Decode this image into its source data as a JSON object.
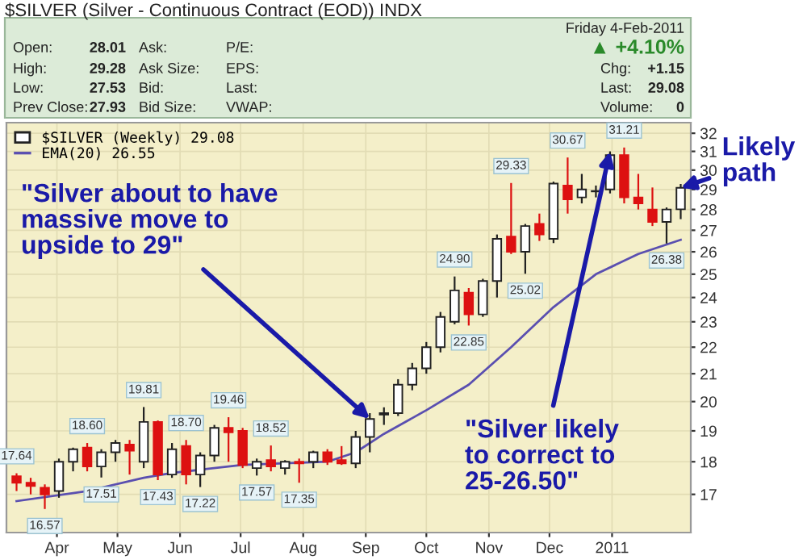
{
  "chart_data": {
    "type": "candlestick",
    "title": "$SILVER (Silver - Continuous Contract (EOD)) INDX",
    "x": [
      "2010-03-12",
      "2010-03-19",
      "2010-03-26",
      "2010-04-02",
      "2010-04-09",
      "2010-04-16",
      "2010-04-23",
      "2010-04-30",
      "2010-05-07",
      "2010-05-14",
      "2010-05-21",
      "2010-05-28",
      "2010-06-04",
      "2010-06-11",
      "2010-06-18",
      "2010-06-25",
      "2010-07-02",
      "2010-07-09",
      "2010-07-16",
      "2010-07-23",
      "2010-07-30",
      "2010-08-06",
      "2010-08-13",
      "2010-08-20",
      "2010-08-27",
      "2010-09-03",
      "2010-09-10",
      "2010-09-17",
      "2010-09-24",
      "2010-10-01",
      "2010-10-08",
      "2010-10-15",
      "2010-10-22",
      "2010-10-29",
      "2010-11-05",
      "2010-11-12",
      "2010-11-19",
      "2010-11-26",
      "2010-12-03",
      "2010-12-10",
      "2010-12-17",
      "2010-12-24",
      "2010-12-31",
      "2011-01-07",
      "2011-01-14",
      "2011-01-21",
      "2011-01-28",
      "2011-02-04"
    ],
    "series": [
      {
        "name": "$SILVER (Weekly) 29.08",
        "type": "candlestick",
        "ohlc": [
          [
            17.55,
            17.64,
            17.1,
            17.35
          ],
          [
            17.35,
            17.5,
            17.0,
            17.25
          ],
          [
            17.2,
            17.3,
            16.57,
            17.0
          ],
          [
            17.1,
            18.1,
            16.9,
            18.0
          ],
          [
            18.0,
            18.45,
            17.7,
            18.4
          ],
          [
            18.45,
            18.6,
            17.7,
            17.85
          ],
          [
            17.85,
            18.4,
            17.51,
            18.3
          ],
          [
            18.3,
            18.7,
            18.0,
            18.6
          ],
          [
            18.55,
            18.7,
            17.6,
            18.35
          ],
          [
            18.0,
            19.81,
            17.8,
            19.3
          ],
          [
            19.3,
            19.35,
            17.43,
            17.6
          ],
          [
            17.6,
            18.6,
            17.5,
            18.4
          ],
          [
            18.5,
            18.7,
            17.3,
            17.6
          ],
          [
            17.6,
            18.3,
            17.22,
            18.2
          ],
          [
            18.2,
            19.2,
            18.0,
            19.1
          ],
          [
            19.1,
            19.46,
            18.0,
            18.95
          ],
          [
            19.0,
            19.1,
            17.8,
            17.9
          ],
          [
            17.8,
            18.1,
            17.57,
            18.0
          ],
          [
            18.05,
            18.52,
            17.7,
            17.85
          ],
          [
            17.8,
            18.05,
            17.6,
            18.0
          ],
          [
            18.0,
            18.1,
            17.35,
            17.95
          ],
          [
            18.0,
            18.35,
            17.8,
            18.3
          ],
          [
            18.3,
            18.4,
            17.9,
            18.0
          ],
          [
            18.05,
            18.5,
            17.9,
            17.95
          ],
          [
            17.95,
            19.0,
            17.8,
            18.8
          ],
          [
            18.8,
            19.6,
            18.3,
            19.4
          ],
          [
            19.55,
            19.8,
            19.2,
            19.6
          ],
          [
            19.6,
            20.8,
            19.5,
            20.6
          ],
          [
            20.6,
            21.4,
            20.4,
            21.2
          ],
          [
            21.2,
            22.2,
            21.0,
            22.0
          ],
          [
            22.0,
            23.4,
            21.8,
            23.2
          ],
          [
            23.0,
            24.9,
            22.9,
            24.3
          ],
          [
            24.2,
            24.4,
            22.85,
            23.3
          ],
          [
            23.3,
            24.8,
            23.2,
            24.7
          ],
          [
            24.7,
            26.8,
            24.0,
            26.6
          ],
          [
            26.7,
            29.33,
            25.9,
            26.0
          ],
          [
            26.0,
            27.3,
            25.02,
            27.2
          ],
          [
            27.3,
            27.8,
            26.5,
            26.8
          ],
          [
            26.6,
            29.4,
            26.4,
            29.3
          ],
          [
            29.2,
            30.67,
            27.8,
            28.5
          ],
          [
            28.6,
            29.8,
            28.3,
            29.0
          ],
          [
            28.9,
            29.2,
            28.6,
            28.9
          ],
          [
            29.0,
            31.0,
            28.8,
            30.8
          ],
          [
            30.8,
            31.21,
            28.3,
            28.6
          ],
          [
            28.6,
            29.8,
            28.0,
            28.3
          ],
          [
            28.0,
            29.1,
            27.2,
            27.4
          ],
          [
            27.4,
            28.1,
            26.38,
            28.0
          ],
          [
            28.01,
            29.28,
            27.53,
            29.08
          ]
        ],
        "colors": [
          "#dd1111",
          "#dd1111",
          "#dd1111",
          "#ffffff",
          "#ffffff",
          "#dd1111",
          "#ffffff",
          "#ffffff",
          "#dd1111",
          "#ffffff",
          "#dd1111",
          "#ffffff",
          "#dd1111",
          "#ffffff",
          "#ffffff",
          "#dd1111",
          "#dd1111",
          "#ffffff",
          "#dd1111",
          "#ffffff",
          "#dd1111",
          "#ffffff",
          "#dd1111",
          "#dd1111",
          "#ffffff",
          "#ffffff",
          "#ffffff",
          "#ffffff",
          "#ffffff",
          "#ffffff",
          "#ffffff",
          "#ffffff",
          "#dd1111",
          "#ffffff",
          "#ffffff",
          "#dd1111",
          "#ffffff",
          "#dd1111",
          "#ffffff",
          "#dd1111",
          "#ffffff",
          "#ffffff",
          "#ffffff",
          "#dd1111",
          "#dd1111",
          "#dd1111",
          "#ffffff",
          "#ffffff"
        ]
      },
      {
        "name": "EMA(20) 26.55",
        "type": "line",
        "color": "#5a4fb0",
        "x": [
          "2010-03-12",
          "2010-04-16",
          "2010-05-14",
          "2010-05-28",
          "2010-07-02",
          "2010-08-13",
          "2010-08-27",
          "2010-09-10",
          "2010-10-01",
          "2010-10-22",
          "2010-11-12",
          "2010-12-03",
          "2010-12-24",
          "2011-01-14",
          "2011-02-04"
        ],
        "values": [
          16.8,
          17.1,
          17.5,
          17.65,
          17.9,
          18.0,
          18.3,
          18.9,
          19.7,
          20.6,
          22.0,
          23.6,
          25.0,
          25.9,
          26.55
        ]
      }
    ],
    "ylim": [
      15.9,
      32.6
    ],
    "yticks": [
      17,
      18,
      19,
      20,
      21,
      22,
      23,
      24,
      25,
      26,
      27,
      28,
      29,
      30,
      31,
      32
    ],
    "log": true,
    "xlim": [
      "2010-03-07",
      "2011-02-09"
    ],
    "xticks": [
      {
        "value": "2010-04-01",
        "label": "Apr"
      },
      {
        "value": "2010-05-01",
        "label": "May"
      },
      {
        "value": "2010-06-01",
        "label": "Jun"
      },
      {
        "value": "2010-07-01",
        "label": "Jul"
      },
      {
        "value": "2010-08-01",
        "label": "Aug"
      },
      {
        "value": "2010-09-01",
        "label": "Sep"
      },
      {
        "value": "2010-10-01",
        "label": "Oct"
      },
      {
        "value": "2010-11-01",
        "label": "Nov"
      },
      {
        "value": "2010-12-01",
        "label": "Dec"
      },
      {
        "value": "2011-01-01",
        "label": "2011"
      }
    ],
    "grid": true,
    "legend": "top left",
    "annotations": [
      "Friday 4-Feb-2011",
      "▲ +4.10%",
      "Open:",
      "28.01",
      "Ask:",
      "P/E:",
      "High:",
      "29.28",
      "Ask Size:",
      "EPS:",
      "Chg:",
      "+1.15",
      "Low:",
      "27.53",
      "Bid:",
      "Last:",
      "Last:",
      "29.08",
      "Prev Close:",
      "27.93",
      "Bid Size:",
      "VWAP:",
      "Volume:",
      "0",
      {
        "text": "17.64",
        "x": "2010-03-12",
        "y": 17.64
      },
      {
        "text": "16.57",
        "x": "2010-03-26",
        "y": 16.57
      },
      {
        "text": "18.60",
        "x": "2010-04-16",
        "y": 18.6
      },
      {
        "text": "17.51",
        "x": "2010-04-23",
        "y": 17.51
      },
      {
        "text": "19.81",
        "x": "2010-05-14",
        "y": 19.81
      },
      {
        "text": "17.43",
        "x": "2010-05-21",
        "y": 17.43
      },
      {
        "text": "18.70",
        "x": "2010-06-04",
        "y": 18.7
      },
      {
        "text": "17.22",
        "x": "2010-06-11",
        "y": 17.22
      },
      {
        "text": "19.46",
        "x": "2010-06-25",
        "y": 19.46
      },
      {
        "text": "17.57",
        "x": "2010-07-09",
        "y": 17.57
      },
      {
        "text": "18.52",
        "x": "2010-07-16",
        "y": 18.52
      },
      {
        "text": "17.35",
        "x": "2010-07-30",
        "y": 17.35
      },
      {
        "text": "24.90",
        "x": "2010-10-15",
        "y": 24.9
      },
      {
        "text": "22.85",
        "x": "2010-10-22",
        "y": 22.85
      },
      {
        "text": "29.33",
        "x": "2010-11-12",
        "y": 29.33
      },
      {
        "text": "25.02",
        "x": "2010-11-19",
        "y": 25.02
      },
      {
        "text": "30.67",
        "x": "2010-12-10",
        "y": 30.67
      },
      {
        "text": "31.21",
        "x": "2011-01-07",
        "y": 31.21
      },
      {
        "text": "26.38",
        "x": "2011-01-28",
        "y": 26.38
      },
      {
        "text": "\"Silver about to have\nmassive move to\nupside to 29\"",
        "x": "2010-09-03",
        "y": 19.4
      },
      {
        "text": "\"Silver likely\nto correct to\n25-26.50\"",
        "x": "2010-12-31",
        "y": 31.0
      },
      {
        "text": "Likely\npath",
        "x": "2011-02-04",
        "y": 29.08
      }
    ]
  }
}
